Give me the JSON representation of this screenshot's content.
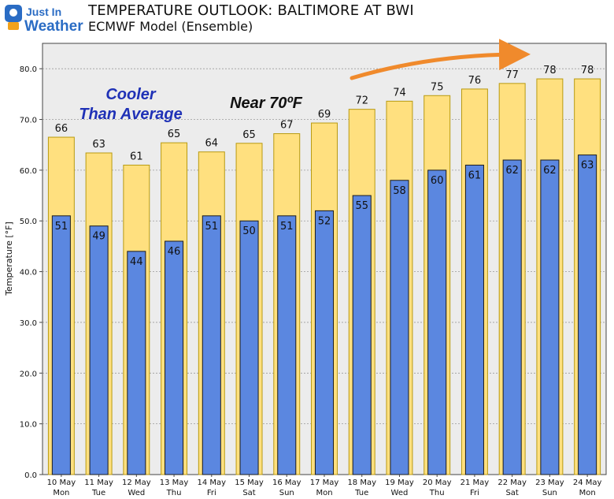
{
  "header": {
    "logo_line1": "Just In",
    "logo_line2": "Weather",
    "title": "TEMPERATURE OUTLOOK: BALTIMORE AT BWI",
    "subtitle": "ECMWF Model (Ensemble)"
  },
  "colors": {
    "high_fill": "#ffe07f",
    "low_fill": "#5b87e0",
    "bar_outline": "#b89a10",
    "annotation_blue": "#1f31b6",
    "arrow": "#f08a2c",
    "plot_bg": "#ececec",
    "logo_blue": "#2a6cc4"
  },
  "chart_data": {
    "type": "bar",
    "title": "TEMPERATURE OUTLOOK: BALTIMORE AT BWI",
    "subtitle": "ECMWF Model (Ensemble)",
    "ylabel": "Temperature [°F]",
    "ylim": [
      0,
      85
    ],
    "yticks": [
      "0.0",
      "10.0",
      "20.0",
      "30.0",
      "40.0",
      "50.0",
      "60.0",
      "70.0",
      "80.0"
    ],
    "grid": true,
    "categories": [
      [
        "10 May",
        "Mon"
      ],
      [
        "11 May",
        "Tue"
      ],
      [
        "12 May",
        "Wed"
      ],
      [
        "13 May",
        "Thu"
      ],
      [
        "14 May",
        "Fri"
      ],
      [
        "15 May",
        "Sat"
      ],
      [
        "16 May",
        "Sun"
      ],
      [
        "17 May",
        "Mon"
      ],
      [
        "18 May",
        "Tue"
      ],
      [
        "19 May",
        "Wed"
      ],
      [
        "20 May",
        "Thu"
      ],
      [
        "21 May",
        "Fri"
      ],
      [
        "22 May",
        "Sat"
      ],
      [
        "23 May",
        "Sun"
      ],
      [
        "24 May",
        "Mon"
      ]
    ],
    "series": [
      {
        "values": [
          66.5,
          63.4,
          61,
          65.4,
          63.6,
          65.3,
          67.2,
          69.3,
          72,
          73.6,
          74.7,
          76,
          77.1,
          78,
          78
        ],
        "labels": [
          "66",
          "63",
          "61",
          "65",
          "64",
          "65",
          "67",
          "69",
          "72",
          "74",
          "75",
          "76",
          "77",
          "78",
          "78"
        ]
      },
      {
        "values": [
          51,
          49,
          44,
          46,
          51,
          50,
          51,
          52,
          55,
          58,
          60,
          61,
          62,
          62,
          63
        ],
        "labels": [
          "51",
          "49",
          "44",
          "46",
          "51",
          "50",
          "51",
          "52",
          "55",
          "58",
          "60",
          "61",
          "62",
          "62",
          "63"
        ]
      }
    ],
    "annotations": {
      "cooler_line1": "Cooler",
      "cooler_line2": "Than Average",
      "near": "Near 70ºF"
    }
  }
}
